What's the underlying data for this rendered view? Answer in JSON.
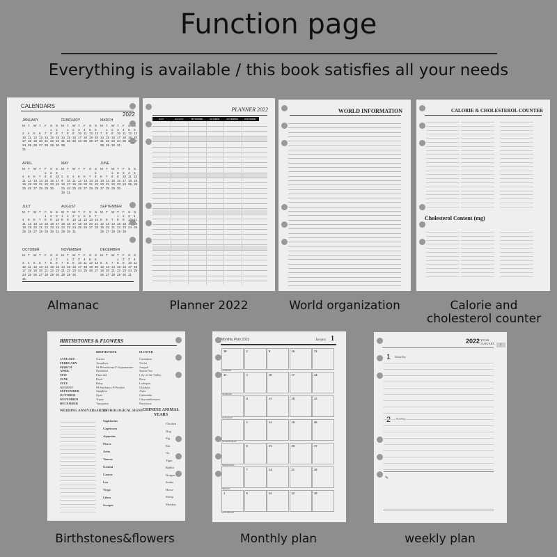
{
  "header": {
    "title": "Function page",
    "subtitle": "Everything is available / this book satisfies all your needs"
  },
  "almanac": {
    "label": "Almanac",
    "heading": "CALENDARS",
    "year": "2022",
    "weekdays": [
      "M",
      "T",
      "W",
      "T",
      "F",
      "S",
      "S"
    ],
    "months": [
      "JANUARY",
      "FEBRUARY",
      "MARCH",
      "APRIL",
      "MAY",
      "JUNE",
      "JULY",
      "AUGUST",
      "SEPTEMBER",
      "OCTOBER",
      "NOVEMBER",
      "DECEMBER"
    ]
  },
  "planner": {
    "label": "Planner 2022",
    "heading": "PLANNER 2022",
    "months": [
      "JULY",
      "AUGUST",
      "SEPTEMBER",
      "OCTOBER",
      "NOVEMBER",
      "DECEMBER"
    ]
  },
  "world": {
    "label": "World organization",
    "heading": "WORLD INFORMATION"
  },
  "calorie": {
    "label_line1": "Calorie and",
    "label_line2": "cholesterol counter",
    "heading": "CALORIE & CHOLESTEROL COUNTER",
    "cholesterol_heading": "Cholesterol Content (mg)"
  },
  "birthstones": {
    "label": "Birthstones&flowers",
    "heading": "BIRTHSTONES & FLOWERS",
    "col_stone": "BIRTHSTONE",
    "col_flower": "FLOWER",
    "rows": [
      [
        "JANUARY",
        "Garnet",
        "Carnation"
      ],
      [
        "FEBRUARY",
        "Amethyst",
        "Violet"
      ],
      [
        "MARCH",
        "M-Bloodstone  F-Aquamarine",
        "Jonquil"
      ],
      [
        "APRIL",
        "Diamond",
        "Sweet Pea"
      ],
      [
        "MAY",
        "Emerald",
        "Lily of the Valley"
      ],
      [
        "JUNE",
        "Pearl",
        "Rose"
      ],
      [
        "JULY",
        "Ruby",
        "Larkspur"
      ],
      [
        "AUGUST",
        "M-Sardonyx  F-Peridot",
        "Gladiola"
      ],
      [
        "SEPTEMBER",
        "Sapphire",
        "Aster"
      ],
      [
        "OCTOBER",
        "Opal",
        "Calendula"
      ],
      [
        "NOVEMBER",
        "Topaz",
        "Chrysanthemum"
      ],
      [
        "DECEMBER",
        "Turquoise",
        "Narcissus"
      ]
    ],
    "sec1": "WEDDING ANNIVERSARIES",
    "sec2": "ASTROLOGICAL SIGNS",
    "sec3": "CHINESE ANIMAL YEARS",
    "signs": [
      "Sagittarius",
      "Capricorn",
      "Aquarius",
      "Pisces",
      "Aries",
      "Taurus",
      "Gemini",
      "Cancer",
      "Leo",
      "Virgo",
      "Libra",
      "Scorpio"
    ],
    "animals": [
      "Chicken",
      "Dog",
      "Pig",
      "Rat",
      "Ox",
      "Tiger",
      "Rabbit",
      "Dragon",
      "Snake",
      "Horse",
      "Sheep",
      "Monkey"
    ]
  },
  "monthly": {
    "label": "Monthly plan",
    "heading": "Monthly Plan 2022",
    "month": "January",
    "month_num": "1",
    "days": [
      "SUNDAY",
      "MONDAY",
      "TUESDAY",
      "WEDNESDAY",
      "THURSDAY",
      "FRIDAY",
      "SATURDAY"
    ],
    "grid": [
      [
        "30",
        "2",
        "9",
        "16",
        "23"
      ],
      [
        "31",
        "3",
        "10",
        "17",
        "24"
      ],
      [
        "",
        "4",
        "11",
        "18",
        "25"
      ],
      [
        "",
        "5",
        "12",
        "19",
        "26"
      ],
      [
        "",
        "6",
        "13",
        "20",
        "27"
      ],
      [
        "",
        "7",
        "14",
        "21",
        "28"
      ],
      [
        "1",
        "8",
        "15",
        "22",
        "29"
      ]
    ]
  },
  "weekly": {
    "label": "weekly plan",
    "year": "2022",
    "year_word": "YEAR",
    "month": "JANUARY",
    "tab": "1",
    "day1_num": "1",
    "day1": "Saturday",
    "day2_num": "2",
    "day2": "Sunday"
  }
}
